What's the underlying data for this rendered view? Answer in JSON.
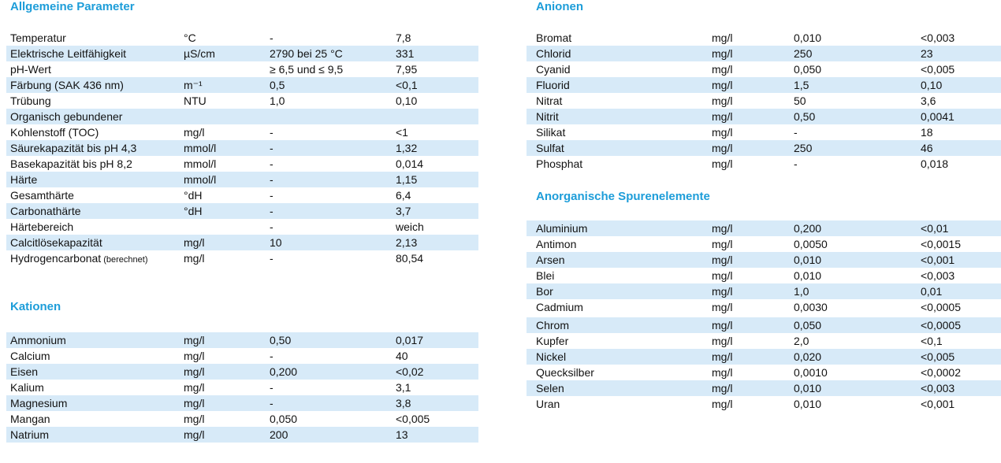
{
  "colors": {
    "accent": "#1d9dd9",
    "row_shade": "#d7eaf8",
    "text": "#121212",
    "background": "#ffffff"
  },
  "pages": {
    "left": {
      "sections": [
        {
          "title": "Allgemeine Parameter",
          "rows": [
            {
              "param": "Temperatur",
              "unit": "°C",
              "limit": "-",
              "value": "7,8",
              "shaded": false
            },
            {
              "param": "Elektrische Leitfähigkeit",
              "unit": "µS/cm",
              "limit": "2790 bei 25 °C",
              "value": "331",
              "shaded": true
            },
            {
              "param": "pH-Wert",
              "unit": "",
              "limit": "≥ 6,5 und ≤ 9,5",
              "value": "7,95",
              "shaded": false
            },
            {
              "param": "Färbung (SAK 436 nm)",
              "unit": "m⁻¹",
              "limit": "0,5",
              "value": "<0,1",
              "shaded": true
            },
            {
              "param": "Trübung",
              "unit": "NTU",
              "limit": "1,0",
              "value": "0,10",
              "shaded": false
            },
            {
              "param": "Organisch gebundener",
              "unit": "",
              "limit": "",
              "value": "",
              "shaded": true
            },
            {
              "param": "Kohlenstoff (TOC)",
              "unit": "mg/l",
              "limit": "-",
              "value": "<1",
              "shaded": false
            },
            {
              "param": "Säurekapazität bis pH 4,3",
              "unit": "mmol/l",
              "limit": "-",
              "value": "1,32",
              "shaded": true
            },
            {
              "param": "Basekapazität bis pH 8,2",
              "unit": "mmol/l",
              "limit": "-",
              "value": "0,014",
              "shaded": false
            },
            {
              "param": "Härte",
              "unit": "mmol/l",
              "limit": "-",
              "value": "1,15",
              "shaded": true
            },
            {
              "param": "Gesamthärte",
              "unit": "°dH",
              "limit": "-",
              "value": "6,4",
              "shaded": false
            },
            {
              "param": "Carbonathärte",
              "unit": "°dH",
              "limit": "-",
              "value": "3,7",
              "shaded": true
            },
            {
              "param": "Härtebereich",
              "unit": "",
              "limit": "-",
              "value": "weich",
              "shaded": false
            },
            {
              "param": "Calcitlösekapazität",
              "unit": "mg/l",
              "limit": "10",
              "value": "2,13",
              "shaded": true
            },
            {
              "param": "Hydrogencarbonat",
              "param_note": "(berechnet)",
              "unit": "mg/l",
              "limit": "-",
              "value": "80,54",
              "shaded": false
            }
          ]
        },
        {
          "title": "Kationen",
          "rows": [
            {
              "param": "Ammonium",
              "unit": "mg/l",
              "limit": "0,50",
              "value": "0,017",
              "shaded": true
            },
            {
              "param": "Calcium",
              "unit": "mg/l",
              "limit": "-",
              "value": "40",
              "shaded": false
            },
            {
              "param": "Eisen",
              "unit": "mg/l",
              "limit": "0,200",
              "value": "<0,02",
              "shaded": true
            },
            {
              "param": "Kalium",
              "unit": "mg/l",
              "limit": "-",
              "value": "3,1",
              "shaded": false
            },
            {
              "param": "Magnesium",
              "unit": "mg/l",
              "limit": "-",
              "value": "3,8",
              "shaded": true
            },
            {
              "param": "Mangan",
              "unit": "mg/l",
              "limit": "0,050",
              "value": "<0,005",
              "shaded": false
            },
            {
              "param": "Natrium",
              "unit": "mg/l",
              "limit": "200",
              "value": "13",
              "shaded": true
            }
          ]
        }
      ]
    },
    "right": {
      "sections": [
        {
          "title": "Anionen",
          "rows": [
            {
              "param": "Bromat",
              "unit": "mg/l",
              "limit": "0,010",
              "value": "<0,003",
              "shaded": false
            },
            {
              "param": "Chlorid",
              "unit": "mg/l",
              "limit": "250",
              "value": "23",
              "shaded": true
            },
            {
              "param": "Cyanid",
              "unit": "mg/l",
              "limit": "0,050",
              "value": "<0,005",
              "shaded": false
            },
            {
              "param": "Fluorid",
              "unit": "mg/l",
              "limit": "1,5",
              "value": "0,10",
              "shaded": true
            },
            {
              "param": "Nitrat",
              "unit": "mg/l",
              "limit": "50",
              "value": "3,6",
              "shaded": false
            },
            {
              "param": "Nitrit",
              "unit": "mg/l",
              "limit": "0,50",
              "value": "0,0041",
              "shaded": true
            },
            {
              "param": "Silikat",
              "unit": "mg/l",
              "limit": "-",
              "value": "18",
              "shaded": false
            },
            {
              "param": "Sulfat",
              "unit": "mg/l",
              "limit": "250",
              "value": "46",
              "shaded": true
            },
            {
              "param": "Phosphat",
              "unit": "mg/l",
              "limit": "-",
              "value": "0,018",
              "shaded": false
            }
          ]
        },
        {
          "title": "Anorganische Spurenelemente",
          "rows": [
            {
              "param": "Aluminium",
              "unit": "mg/l",
              "limit": "0,200",
              "value": "<0,01",
              "shaded": true
            },
            {
              "param": "Antimon",
              "unit": "mg/l",
              "limit": "0,0050",
              "value": "<0,0015",
              "shaded": false
            },
            {
              "param": "Arsen",
              "unit": "mg/l",
              "limit": "0,010",
              "value": "<0,001",
              "shaded": true
            },
            {
              "param": "Blei",
              "unit": "mg/l",
              "limit": "0,010",
              "value": "<0,003",
              "shaded": false
            },
            {
              "param": "Bor",
              "unit": "mg/l",
              "limit": "1,0",
              "value": "0,01",
              "shaded": true
            },
            {
              "param": "Cadmium",
              "unit": "mg/l",
              "limit": "0,0030",
              "value": "<0,0005",
              "shaded": false
            },
            {
              "param": "Chrom",
              "unit": "mg/l",
              "limit": "0,050",
              "value": "<0,0005",
              "shaded": true,
              "gap_before": true
            },
            {
              "param": "Kupfer",
              "unit": "mg/l",
              "limit": "2,0",
              "value": "<0,1",
              "shaded": false
            },
            {
              "param": "Nickel",
              "unit": "mg/l",
              "limit": "0,020",
              "value": "<0,005",
              "shaded": true
            },
            {
              "param": "Quecksilber",
              "unit": "mg/l",
              "limit": "0,0010",
              "value": "<0,0002",
              "shaded": false
            },
            {
              "param": "Selen",
              "unit": "mg/l",
              "limit": "0,010",
              "value": "<0,003",
              "shaded": true
            },
            {
              "param": "Uran",
              "unit": "mg/l",
              "limit": "0,010",
              "value": "<0,001",
              "shaded": false
            }
          ]
        }
      ]
    }
  }
}
